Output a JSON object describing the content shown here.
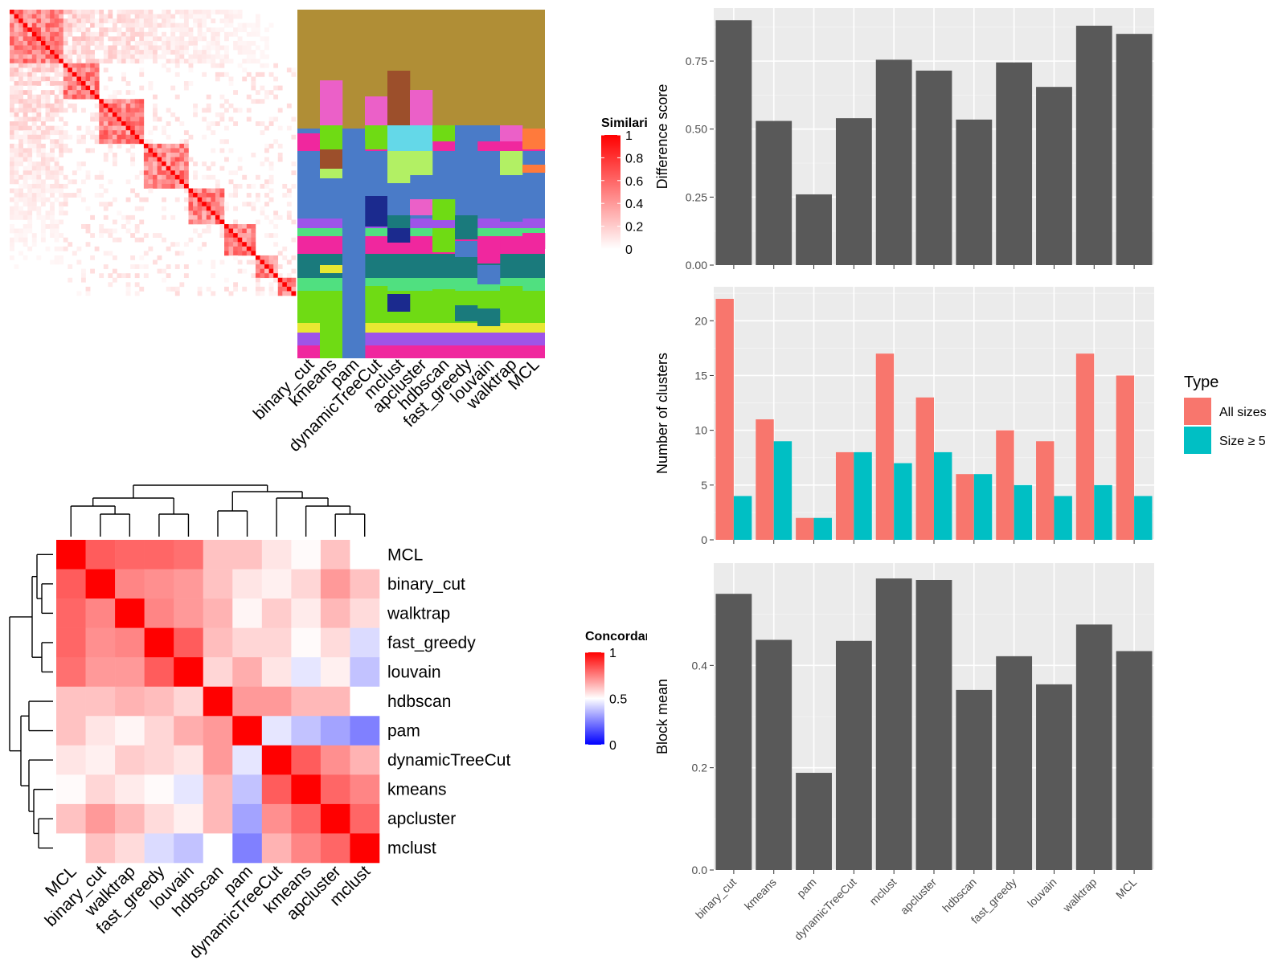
{
  "chart_data": [
    {
      "id": "similarity_heatmap",
      "type": "heatmap",
      "legend_title": "Similarity",
      "legend_ticks": [
        "0",
        "0.2",
        "0.4",
        "0.6",
        "0.8",
        "1"
      ],
      "legend_colors": [
        "#ffffff",
        "#ff0000"
      ]
    },
    {
      "id": "class_matrix",
      "type": "heatmap",
      "columns": [
        "binary_cut",
        "kmeans",
        "pam",
        "dynamicTreeCut",
        "mclust",
        "apcluster",
        "hdbscan",
        "fast_greedy",
        "louvain",
        "walktrap",
        "MCL"
      ]
    },
    {
      "id": "concordance_heatmap",
      "type": "heatmap",
      "legend_title": "Concordance",
      "legend_ticks": [
        "0",
        "0.5",
        "1"
      ],
      "legend_colors": [
        "#0000ff",
        "#ffffff",
        "#ff0000"
      ],
      "rows": [
        "MCL",
        "binary_cut",
        "walktrap",
        "fast_greedy",
        "louvain",
        "hdbscan",
        "pam",
        "dynamicTreeCut",
        "kmeans",
        "apcluster",
        "mclust"
      ],
      "columns": [
        "MCL",
        "binary_cut",
        "walktrap",
        "fast_greedy",
        "louvain",
        "hdbscan",
        "pam",
        "dynamicTreeCut",
        "kmeans",
        "apcluster",
        "mclust"
      ],
      "values": [
        [
          1.0,
          0.82,
          0.8,
          0.8,
          0.78,
          0.62,
          0.62,
          0.55,
          0.51,
          0.62,
          0.5
        ],
        [
          0.82,
          1.0,
          0.74,
          0.72,
          0.7,
          0.62,
          0.55,
          0.53,
          0.58,
          0.7,
          0.62
        ],
        [
          0.8,
          0.74,
          1.0,
          0.74,
          0.7,
          0.65,
          0.52,
          0.6,
          0.54,
          0.64,
          0.57
        ],
        [
          0.8,
          0.72,
          0.74,
          1.0,
          0.82,
          0.63,
          0.58,
          0.58,
          0.51,
          0.57,
          0.43
        ],
        [
          0.78,
          0.7,
          0.7,
          0.82,
          1.0,
          0.58,
          0.66,
          0.55,
          0.45,
          0.53,
          0.38
        ],
        [
          0.62,
          0.62,
          0.65,
          0.63,
          0.58,
          1.0,
          0.7,
          0.7,
          0.64,
          0.64,
          0.5
        ],
        [
          0.62,
          0.55,
          0.52,
          0.58,
          0.66,
          0.7,
          1.0,
          0.45,
          0.38,
          0.32,
          0.25
        ],
        [
          0.55,
          0.53,
          0.6,
          0.58,
          0.55,
          0.7,
          0.45,
          1.0,
          0.82,
          0.72,
          0.65
        ],
        [
          0.51,
          0.58,
          0.54,
          0.51,
          0.45,
          0.64,
          0.38,
          0.82,
          1.0,
          0.8,
          0.74
        ],
        [
          0.62,
          0.7,
          0.64,
          0.57,
          0.53,
          0.64,
          0.32,
          0.72,
          0.8,
          1.0,
          0.8
        ],
        [
          0.5,
          0.62,
          0.57,
          0.43,
          0.38,
          0.5,
          0.25,
          0.65,
          0.74,
          0.8,
          1.0
        ]
      ]
    },
    {
      "id": "difference_score",
      "type": "bar",
      "categories": [
        "binary_cut",
        "kmeans",
        "pam",
        "dynamicTreeCut",
        "mclust",
        "apcluster",
        "hdbscan",
        "fast_greedy",
        "louvain",
        "walktrap",
        "MCL"
      ],
      "values": [
        0.9,
        0.53,
        0.26,
        0.54,
        0.755,
        0.715,
        0.535,
        0.745,
        0.655,
        0.88,
        0.85
      ],
      "ylabel": "Difference score",
      "yticks": [
        "0.00",
        "0.25",
        "0.50",
        "0.75"
      ],
      "ylim": [
        0,
        0.945
      ]
    },
    {
      "id": "number_of_clusters",
      "type": "bar",
      "categories": [
        "binary_cut",
        "kmeans",
        "pam",
        "dynamicTreeCut",
        "mclust",
        "apcluster",
        "hdbscan",
        "fast_greedy",
        "louvain",
        "walktrap",
        "MCL"
      ],
      "series": [
        {
          "name": "All sizes",
          "color": "#F8766D",
          "values": [
            22,
            11,
            2,
            8,
            17,
            13,
            6,
            10,
            9,
            17,
            15
          ]
        },
        {
          "name": "Size ≥ 5",
          "color": "#00BFC4",
          "values": [
            4,
            9,
            2,
            8,
            7,
            8,
            6,
            5,
            4,
            5,
            4
          ]
        }
      ],
      "ylabel": "Number of clusters",
      "yticks": [
        "0",
        "5",
        "10",
        "15",
        "20"
      ],
      "ylim": [
        0,
        23.1
      ],
      "legend_title": "Type"
    },
    {
      "id": "block_mean",
      "type": "bar",
      "categories": [
        "binary_cut",
        "kmeans",
        "pam",
        "dynamicTreeCut",
        "mclust",
        "apcluster",
        "hdbscan",
        "fast_greedy",
        "louvain",
        "walktrap",
        "MCL"
      ],
      "values": [
        0.54,
        0.45,
        0.19,
        0.448,
        0.57,
        0.567,
        0.352,
        0.418,
        0.363,
        0.48,
        0.428
      ],
      "ylabel": "Block mean",
      "yticks": [
        "0.0",
        "0.2",
        "0.4"
      ],
      "ylim": [
        0,
        0.6
      ]
    }
  ]
}
